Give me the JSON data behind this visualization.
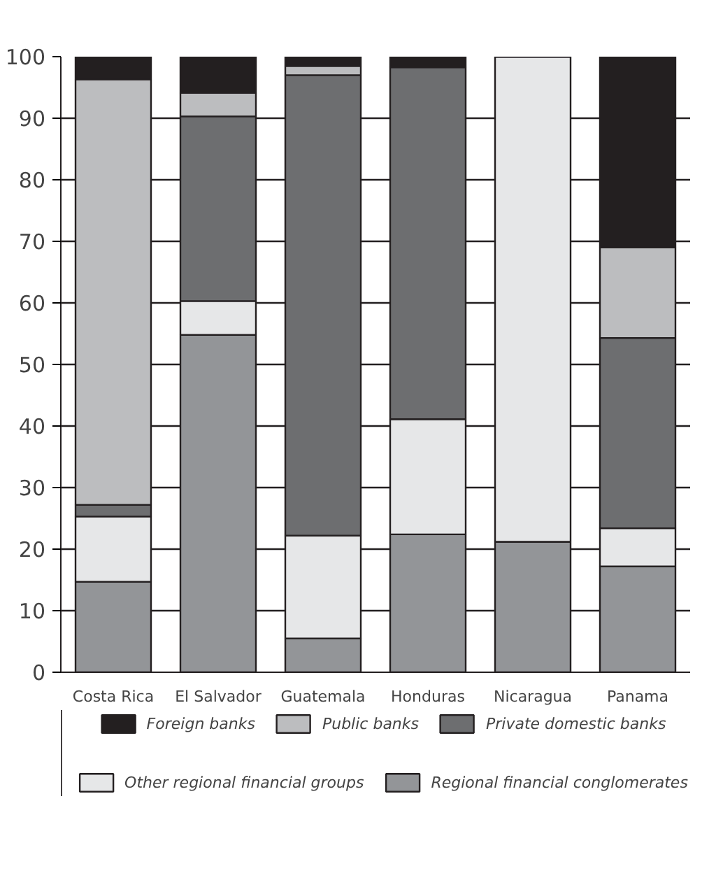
{
  "chart_data": {
    "type": "bar",
    "stacked": true,
    "categories": [
      "Costa Rica",
      "El Salvador",
      "Guatemala",
      "Honduras",
      "Nicaragua",
      "Panama"
    ],
    "series": [
      {
        "name": "Regional financial conglomerates",
        "color": "#939598",
        "values": [
          14.7,
          54.8,
          5.5,
          22.4,
          21.2,
          17.2
        ]
      },
      {
        "name": "Other regional financial groups",
        "color": "#e6e7e8",
        "values": [
          10.6,
          5.5,
          16.7,
          18.7,
          78.8,
          6.2
        ]
      },
      {
        "name": "Private domestic banks",
        "color": "#6d6e70",
        "values": [
          1.9,
          30.0,
          74.8,
          57.2,
          0,
          30.9
        ]
      },
      {
        "name": "Public banks",
        "color": "#bcbdbf",
        "values": [
          69.1,
          3.8,
          1.5,
          0,
          0,
          14.7
        ]
      },
      {
        "name": "Foreign banks",
        "color": "#231f20",
        "values": [
          3.7,
          5.9,
          1.5,
          1.7,
          0,
          31.0
        ]
      }
    ],
    "ylim": [
      0,
      100
    ],
    "yticks": [
      0,
      10,
      20,
      30,
      40,
      50,
      60,
      70,
      80,
      90,
      100
    ],
    "grid": "y",
    "legend": "bottom"
  }
}
